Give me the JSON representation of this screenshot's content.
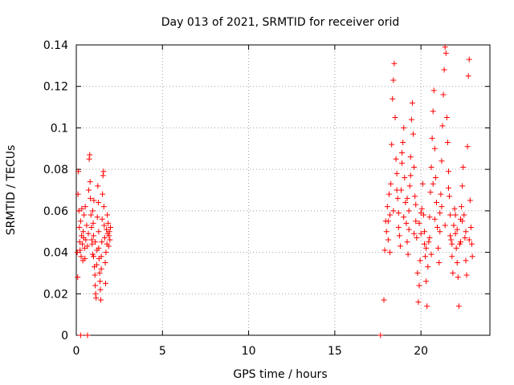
{
  "chart_data": {
    "type": "scatter",
    "title": "Day 013 of 2021, SRMTID for receiver orid",
    "xlabel": "GPS time / hours",
    "ylabel": "SRMTID / TECUs",
    "xlim": [
      0,
      24
    ],
    "ylim": [
      0,
      0.14
    ],
    "xticks": [
      0,
      5,
      10,
      15,
      20
    ],
    "xtick_labels": [
      "0",
      "5",
      "10",
      "15",
      "20"
    ],
    "yticks": [
      0,
      0.02,
      0.04,
      0.06,
      0.08,
      0.1,
      0.12,
      0.14
    ],
    "ytick_labels": [
      "0",
      "0.02",
      "0.04",
      "0.06",
      "0.08",
      "0.1",
      "0.12",
      "0.14"
    ],
    "grid": true,
    "marker": "plus",
    "color": "#ff0000",
    "series": [
      {
        "points": [
          [
            0.05,
            0.04
          ],
          [
            0.08,
            0.028
          ],
          [
            0.1,
            0.068
          ],
          [
            0.12,
            0.079
          ],
          [
            0.15,
            0.06
          ],
          [
            0.18,
            0.052
          ],
          [
            0.2,
            0.045
          ],
          [
            0.22,
            0.041
          ],
          [
            0.25,
            0.055
          ],
          [
            0.28,
            0.038
          ],
          [
            0.3,
            0.048
          ],
          [
            0.32,
            0.061
          ],
          [
            0.35,
            0.044
          ],
          [
            0.38,
            0.036
          ],
          [
            0.4,
            0.05
          ],
          [
            0.42,
            0.047
          ],
          [
            0.45,
            0.058
          ],
          [
            0.48,
            0.042
          ],
          [
            0.5,
            0.037
          ],
          [
            0.52,
            0.062
          ],
          [
            0.55,
            0.046
          ],
          [
            0.6,
            0.053
          ],
          [
            0.65,
            0.043
          ],
          [
            0.7,
            0.049
          ],
          [
            0.72,
            0.07
          ],
          [
            0.75,
            0.085
          ],
          [
            0.78,
            0.087
          ],
          [
            0.8,
            0.074
          ],
          [
            0.82,
            0.066
          ],
          [
            0.85,
            0.058
          ],
          [
            0.88,
            0.052
          ],
          [
            0.9,
            0.046
          ],
          [
            0.92,
            0.044
          ],
          [
            0.95,
            0.039
          ],
          [
            0.98,
            0.054
          ],
          [
            1.0,
            0.048
          ],
          [
            1.02,
            0.065
          ],
          [
            1.05,
            0.033
          ],
          [
            1.08,
            0.029
          ],
          [
            1.1,
            0.024
          ],
          [
            1.12,
            0.02
          ],
          [
            1.15,
            0.018
          ],
          [
            1.18,
            0.034
          ],
          [
            1.2,
            0.041
          ],
          [
            1.22,
            0.057
          ],
          [
            1.25,
            0.072
          ],
          [
            1.28,
            0.064
          ],
          [
            1.3,
            0.05
          ],
          [
            1.32,
            0.037
          ],
          [
            1.35,
            0.03
          ],
          [
            1.38,
            0.026
          ],
          [
            1.4,
            0.022
          ],
          [
            1.42,
            0.017
          ],
          [
            1.45,
            0.038
          ],
          [
            1.48,
            0.045
          ],
          [
            1.5,
            0.056
          ],
          [
            1.52,
            0.068
          ],
          [
            1.55,
            0.077
          ],
          [
            1.58,
            0.079
          ],
          [
            1.6,
            0.062
          ],
          [
            1.62,
            0.053
          ],
          [
            1.65,
            0.047
          ],
          [
            1.68,
            0.035
          ],
          [
            1.7,
            0.025
          ],
          [
            1.72,
            0.04
          ],
          [
            1.75,
            0.051
          ],
          [
            1.78,
            0.044
          ],
          [
            1.8,
            0.058
          ],
          [
            1.82,
            0.049
          ],
          [
            1.85,
            0.054
          ],
          [
            1.88,
            0.043
          ],
          [
            1.9,
            0.048
          ],
          [
            1.92,
            0.05
          ],
          [
            1.95,
            0.046
          ],
          [
            1.98,
            0.052
          ],
          [
            1.1,
            0.045
          ],
          [
            1.0,
            0.038
          ],
          [
            0.95,
            0.06
          ],
          [
            1.3,
            0.042
          ],
          [
            1.45,
            0.032
          ],
          [
            17.85,
            0.017
          ],
          [
            17.9,
            0.041
          ],
          [
            17.95,
            0.055
          ],
          [
            18.0,
            0.05
          ],
          [
            18.05,
            0.062
          ],
          [
            18.1,
            0.046
          ],
          [
            18.15,
            0.068
          ],
          [
            18.2,
            0.058
          ],
          [
            18.25,
            0.073
          ],
          [
            18.3,
            0.092
          ],
          [
            18.35,
            0.114
          ],
          [
            18.4,
            0.123
          ],
          [
            18.45,
            0.131
          ],
          [
            18.5,
            0.105
          ],
          [
            18.55,
            0.085
          ],
          [
            18.6,
            0.078
          ],
          [
            18.65,
            0.066
          ],
          [
            18.7,
            0.059
          ],
          [
            18.75,
            0.048
          ],
          [
            18.8,
            0.043
          ],
          [
            18.85,
            0.07
          ],
          [
            18.9,
            0.083
          ],
          [
            18.95,
            0.093
          ],
          [
            19.0,
            0.1
          ],
          [
            19.05,
            0.076
          ],
          [
            19.1,
            0.064
          ],
          [
            19.15,
            0.054
          ],
          [
            19.2,
            0.045
          ],
          [
            19.25,
            0.039
          ],
          [
            19.3,
            0.06
          ],
          [
            19.35,
            0.072
          ],
          [
            19.4,
            0.086
          ],
          [
            19.45,
            0.104
          ],
          [
            19.5,
            0.112
          ],
          [
            19.55,
            0.097
          ],
          [
            19.6,
            0.081
          ],
          [
            19.65,
            0.067
          ],
          [
            19.7,
            0.055
          ],
          [
            19.75,
            0.047
          ],
          [
            19.8,
            0.03
          ],
          [
            19.85,
            0.016
          ],
          [
            19.9,
            0.024
          ],
          [
            19.95,
            0.036
          ],
          [
            20.0,
            0.049
          ],
          [
            20.05,
            0.061
          ],
          [
            20.1,
            0.073
          ],
          [
            20.15,
            0.058
          ],
          [
            20.2,
            0.044
          ],
          [
            20.25,
            0.038
          ],
          [
            20.3,
            0.026
          ],
          [
            20.35,
            0.014
          ],
          [
            20.4,
            0.033
          ],
          [
            20.45,
            0.045
          ],
          [
            20.5,
            0.057
          ],
          [
            20.55,
            0.069
          ],
          [
            20.6,
            0.081
          ],
          [
            20.65,
            0.095
          ],
          [
            20.7,
            0.108
          ],
          [
            20.75,
            0.118
          ],
          [
            20.8,
            0.09
          ],
          [
            20.85,
            0.076
          ],
          [
            20.9,
            0.064
          ],
          [
            20.95,
            0.052
          ],
          [
            21.0,
            0.042
          ],
          [
            21.05,
            0.035
          ],
          [
            21.1,
            0.05
          ],
          [
            21.15,
            0.068
          ],
          [
            21.2,
            0.084
          ],
          [
            21.25,
            0.101
          ],
          [
            21.3,
            0.116
          ],
          [
            21.35,
            0.128
          ],
          [
            21.4,
            0.139
          ],
          [
            21.45,
            0.136
          ],
          [
            21.5,
            0.105
          ],
          [
            21.55,
            0.093
          ],
          [
            21.6,
            0.079
          ],
          [
            21.65,
            0.067
          ],
          [
            21.7,
            0.058
          ],
          [
            21.75,
            0.046
          ],
          [
            21.8,
            0.038
          ],
          [
            21.85,
            0.03
          ],
          [
            21.9,
            0.053
          ],
          [
            21.95,
            0.061
          ],
          [
            22.0,
            0.049
          ],
          [
            22.05,
            0.042
          ],
          [
            22.1,
            0.035
          ],
          [
            22.15,
            0.028
          ],
          [
            22.2,
            0.014
          ],
          [
            22.25,
            0.044
          ],
          [
            22.3,
            0.056
          ],
          [
            22.35,
            0.062
          ],
          [
            22.4,
            0.072
          ],
          [
            22.45,
            0.081
          ],
          [
            22.5,
            0.058
          ],
          [
            22.55,
            0.047
          ],
          [
            22.6,
            0.036
          ],
          [
            22.65,
            0.029
          ],
          [
            22.7,
            0.091
          ],
          [
            22.75,
            0.125
          ],
          [
            22.8,
            0.133
          ],
          [
            22.85,
            0.065
          ],
          [
            22.9,
            0.052
          ],
          [
            22.95,
            0.044
          ],
          [
            22.98,
            0.038
          ],
          [
            18.1,
            0.055
          ],
          [
            18.4,
            0.06
          ],
          [
            18.7,
            0.052
          ],
          [
            19.0,
            0.057
          ],
          [
            19.3,
            0.051
          ],
          [
            19.6,
            0.049
          ],
          [
            19.9,
            0.054
          ],
          [
            20.2,
            0.05
          ],
          [
            20.5,
            0.047
          ],
          [
            20.8,
            0.056
          ],
          [
            21.1,
            0.059
          ],
          [
            21.4,
            0.053
          ],
          [
            21.7,
            0.048
          ],
          [
            22.0,
            0.058
          ],
          [
            22.3,
            0.045
          ],
          [
            22.6,
            0.05
          ],
          [
            18.2,
            0.04
          ],
          [
            18.6,
            0.07
          ],
          [
            19.2,
            0.066
          ],
          [
            19.7,
            0.063
          ],
          [
            20.3,
            0.042
          ],
          [
            20.6,
            0.039
          ],
          [
            21.2,
            0.062
          ],
          [
            21.8,
            0.044
          ],
          [
            22.1,
            0.051
          ],
          [
            22.4,
            0.055
          ],
          [
            22.8,
            0.046
          ],
          [
            18.9,
            0.088
          ],
          [
            19.4,
            0.077
          ],
          [
            20.0,
            0.059
          ],
          [
            20.7,
            0.073
          ],
          [
            21.6,
            0.071
          ]
        ]
      },
      {
        "points": [
          [
            0.25,
            0.0
          ],
          [
            0.65,
            0.0
          ],
          [
            17.65,
            0.0
          ]
        ]
      }
    ]
  }
}
